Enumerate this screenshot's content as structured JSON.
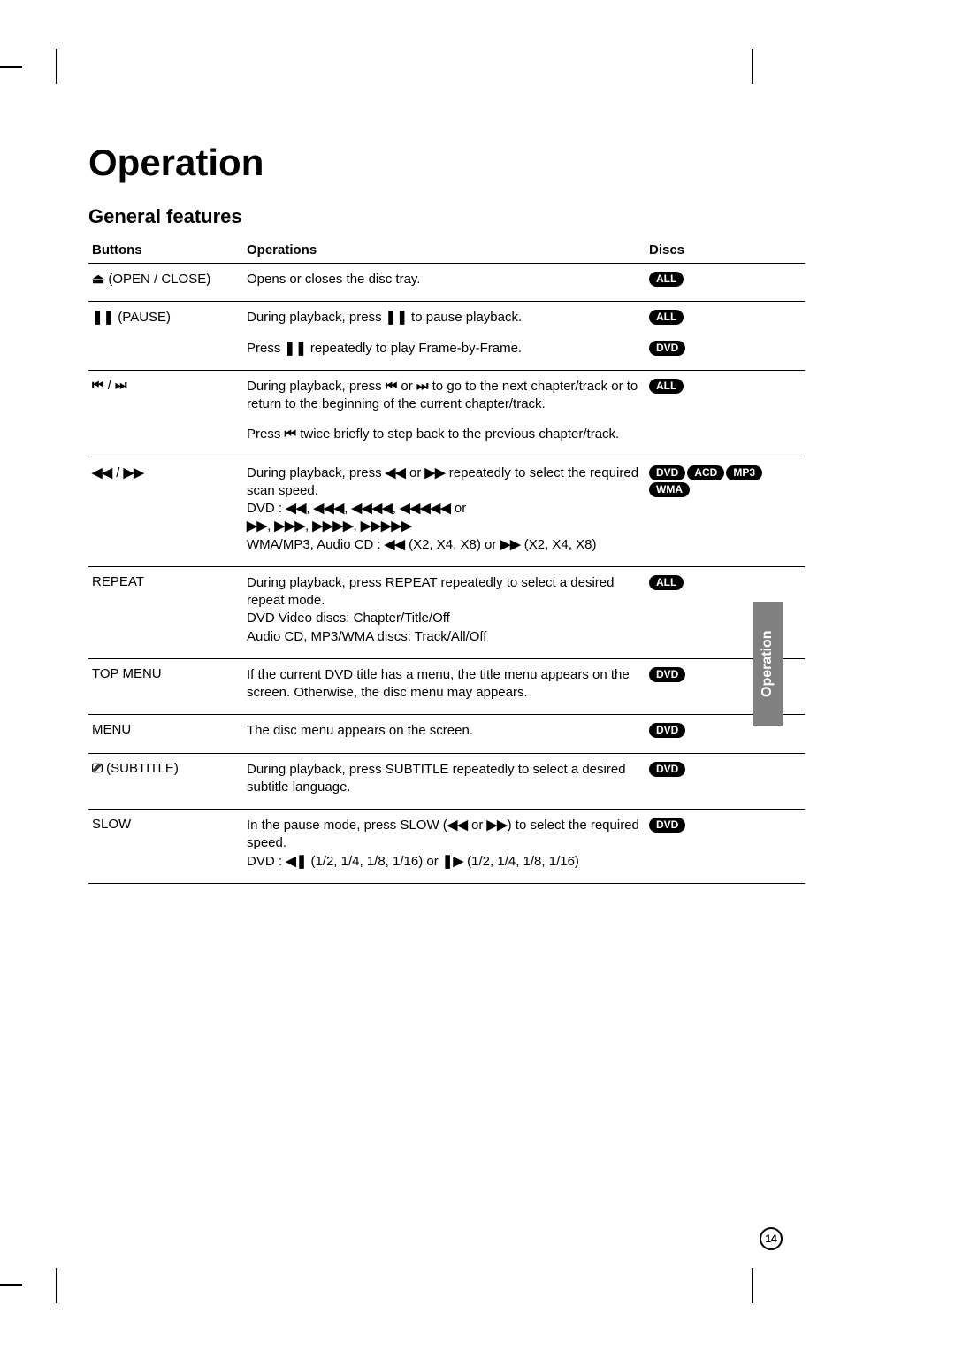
{
  "title": "Operation",
  "subtitle": "General features",
  "side_tab": "Operation",
  "page_number": "14",
  "columns": {
    "buttons": "Buttons",
    "operations": "Operations",
    "discs": "Discs"
  },
  "icons": {
    "eject": "⏏",
    "pause": "❚❚",
    "skip_back": "⏮",
    "skip_fwd": "⏭",
    "rewind": "◀◀",
    "ffwd": "▶▶",
    "subtitle": "⎚",
    "slow_back": "◀❚",
    "slow_fwd": "❚▶"
  },
  "rows": [
    {
      "button_icon": "eject",
      "button_text": " (OPEN / CLOSE)",
      "ops": [
        {
          "text": "Opens or closes the disc tray.",
          "discs": [
            "ALL"
          ],
          "sep": true
        }
      ]
    },
    {
      "button_icon": "pause",
      "button_text": " (PAUSE)",
      "ops": [
        {
          "pre": "During playback, press ",
          "icon": "pause",
          "post": " to pause playback.",
          "discs": [
            "ALL"
          ]
        },
        {
          "pre": "Press ",
          "icon": "pause",
          "post": " repeatedly to play Frame-by-Frame.",
          "discs": [
            "DVD"
          ],
          "sep": true
        }
      ]
    },
    {
      "button_icon": "skip_pair",
      "button_text": "",
      "ops": [
        {
          "html": "During playback, press <span class='sym bold'>⏮</span> or <span class='sym bold'>⏭</span> to go to the next chapter/track or to return to the beginning of the current chapter/track.",
          "discs": [
            "ALL"
          ]
        },
        {
          "html": "Press <span class='sym bold'>⏮</span> twice briefly to step back to the previous chapter/track.",
          "discs": [],
          "sep": true
        }
      ]
    },
    {
      "button_icon": "scan_pair",
      "button_text": "",
      "ops": [
        {
          "html": "During playback, press <span class='sym bold'>◀◀</span> or <span class='sym bold'>▶▶</span> repeatedly to select the required scan speed.<br>DVD : <span class='sym bold'>◀◀</span>, <span class='sym bold'>◀◀◀</span>, <span class='sym bold'>◀◀◀◀</span>, <span class='sym bold'>◀◀◀◀◀</span> or<br><span class='sym bold'>▶▶</span>, <span class='sym bold'>▶▶▶</span>, <span class='sym bold'>▶▶▶▶</span>, <span class='sym bold'>▶▶▶▶▶</span><br>WMA/MP3, Audio CD : <span class='sym bold'>◀◀</span> (X2, X4,  X8) or <span class='sym bold'>▶▶</span> (X2, X4, X8)",
          "discs": [
            "DVD",
            "ACD",
            "MP3",
            "WMA"
          ],
          "sep": true
        }
      ]
    },
    {
      "button_text": "REPEAT",
      "ops": [
        {
          "text": "During playback, press REPEAT repeatedly to select a desired repeat mode.\nDVD Video discs: Chapter/Title/Off\nAudio CD, MP3/WMA discs: Track/All/Off",
          "discs": [
            "ALL"
          ],
          "sep": true
        }
      ]
    },
    {
      "button_text": "TOP MENU",
      "ops": [
        {
          "text": "If the current DVD title has a menu, the title menu appears on the screen. Otherwise, the disc menu may appears.",
          "discs": [
            "DVD"
          ],
          "sep": true
        }
      ]
    },
    {
      "button_text": "MENU",
      "ops": [
        {
          "text": "The disc menu appears on the screen.",
          "discs": [
            "DVD"
          ],
          "sep": true
        }
      ]
    },
    {
      "button_icon": "subtitle",
      "button_text": " (SUBTITLE)",
      "ops": [
        {
          "text": "During playback, press SUBTITLE repeatedly to select a desired subtitle language.",
          "discs": [
            "DVD"
          ],
          "sep": true
        }
      ]
    },
    {
      "button_text": "SLOW",
      "ops": [
        {
          "html": "In the pause mode, press SLOW  (<span class='sym bold'>◀◀</span> or <span class='sym bold'>▶▶</span>) to select the required speed.<br>DVD : <span class='sym bold'>◀❚</span> (1/2, 1/4, 1/8, 1/16) or <span class='sym bold'>❚▶</span> (1/2, 1/4, 1/8, 1/16)",
          "discs": [
            "DVD"
          ],
          "sep": true
        }
      ]
    }
  ]
}
